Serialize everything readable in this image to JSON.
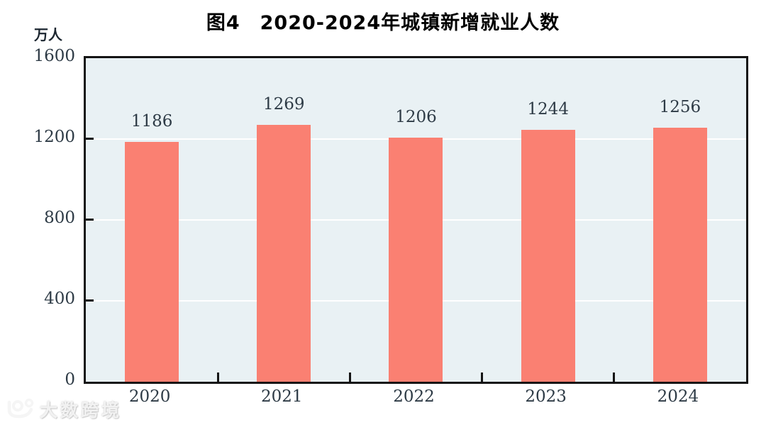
{
  "chart_data": {
    "type": "bar",
    "title": "图4　2020-2024年城镇新增就业人数",
    "unit_label": "万人",
    "categories": [
      "2020",
      "2021",
      "2022",
      "2023",
      "2024"
    ],
    "values": [
      1186,
      1269,
      1206,
      1244,
      1256
    ],
    "ylim": [
      0,
      1600
    ],
    "yticks": [
      0,
      400,
      800,
      1200,
      1600
    ],
    "xlabel": "",
    "ylabel": "万人",
    "grid": true,
    "gridline_values": [
      400,
      800,
      1200
    ],
    "legend": "none",
    "data_labels": true,
    "colors": {
      "bar": "#FA8072",
      "plot_background": "#E9F1F4",
      "gridline": "#FFFFFF",
      "axis": "#141414",
      "label_text": "#2E3B46",
      "title_text": "#000000"
    }
  },
  "watermark": {
    "logo": "100-logo",
    "text": "大数跨境"
  }
}
